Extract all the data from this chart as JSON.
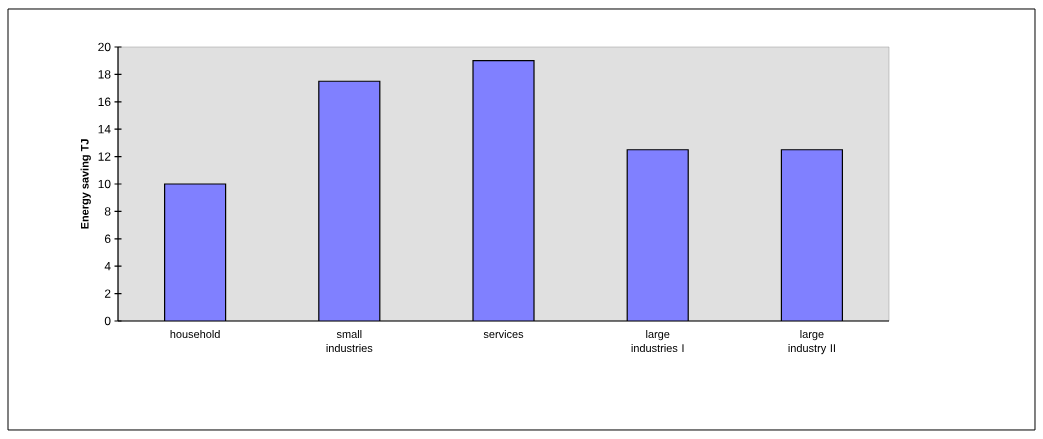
{
  "chart_data": {
    "type": "bar",
    "ylabel": "Energy saving TJ",
    "categories": [
      "household",
      "small industries",
      "services",
      "large industries I",
      "large industry II"
    ],
    "values": [
      10,
      17.5,
      19,
      12.5,
      12.5
    ],
    "color": "#8080ff",
    "ylim": [
      0,
      20
    ],
    "yticks": [
      0,
      2,
      4,
      6,
      8,
      10,
      12,
      14,
      16,
      18,
      20
    ]
  }
}
